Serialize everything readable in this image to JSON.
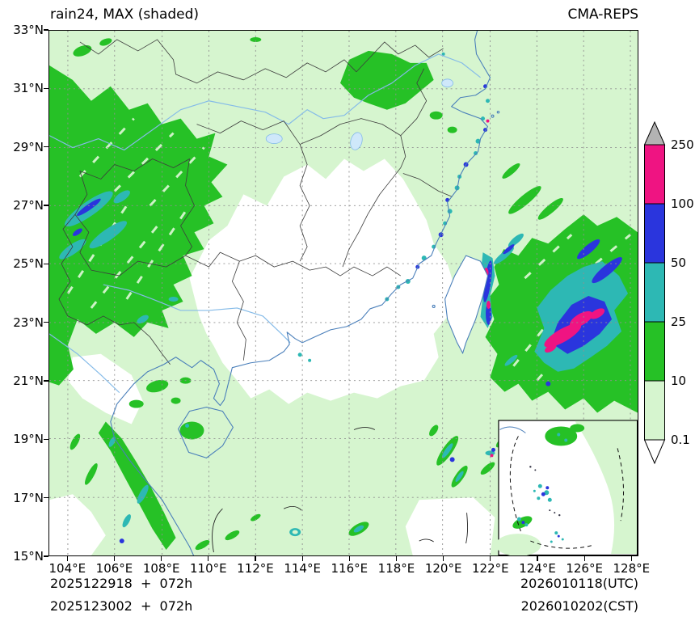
{
  "header": {
    "title": "rain24, MAX (shaded)",
    "model": "CMA-REPS"
  },
  "axes": {
    "x_ticks": [
      "104°E",
      "106°E",
      "108°E",
      "110°E",
      "112°E",
      "114°E",
      "116°E",
      "118°E",
      "120°E",
      "122°E",
      "124°E",
      "126°E",
      "128°E"
    ],
    "y_ticks": [
      "33°N",
      "31°N",
      "29°N",
      "27°N",
      "25°N",
      "23°N",
      "21°N",
      "19°N",
      "17°N",
      "15°N"
    ]
  },
  "colors": {
    "pale": "#d6f5cf",
    "green": "#26c126",
    "teal": "#2db8b4",
    "blue": "#2a35dd",
    "magenta": "#ef1482",
    "over": "#b3b3b3",
    "under": "#ffffff",
    "grid": "#909090",
    "coast": "#4a7fba",
    "river": "#85bbe8",
    "border": "#3c3c3c"
  },
  "colorbar": {
    "tick_labels": [
      "250",
      "100",
      "50",
      "25",
      "10",
      "0.1"
    ],
    "segments_top_to_bottom": [
      "magenta",
      "blue",
      "teal",
      "green",
      "pale"
    ]
  },
  "footer": {
    "init1": "2025122918  +  072h",
    "init2": "2025123002  +  072h",
    "valid1": "2026010118(UTC)",
    "valid2": "2026010202(CST)"
  },
  "chart_data": {
    "type": "heatmap",
    "title": "rain24, MAX (shaded)",
    "model": "CMA-REPS",
    "x_ticks_deg_east": [
      104,
      106,
      108,
      110,
      112,
      114,
      116,
      118,
      120,
      122,
      124,
      126,
      128
    ],
    "y_ticks_deg_north": [
      33,
      31,
      29,
      27,
      25,
      23,
      21,
      19,
      17,
      15
    ],
    "shading_levels": [
      0.1,
      10,
      25,
      50,
      100,
      250
    ],
    "shading_colors": [
      "#d6f5cf",
      "#26c126",
      "#2db8b4",
      "#2a35dd",
      "#ef1482"
    ],
    "over_color": "#b3b3b3",
    "under_color": "#ffffff",
    "init_times": [
      "2025122918",
      "2025123002"
    ],
    "lead": "072h",
    "valid_utc": "2026010118(UTC)",
    "valid_cst": "2026010202(CST)",
    "heavy_rain_centers": [
      {
        "lon_e": 125.3,
        "lat_n": 22.6,
        "band": "100-250"
      },
      {
        "lon_e": 126.2,
        "lat_n": 23.1,
        "band": "100-250"
      },
      {
        "lon_e": 121.9,
        "lat_n": 24.3,
        "band": "50-100"
      },
      {
        "lon_e": 105.0,
        "lat_n": 26.9,
        "band": "25-50"
      }
    ]
  }
}
